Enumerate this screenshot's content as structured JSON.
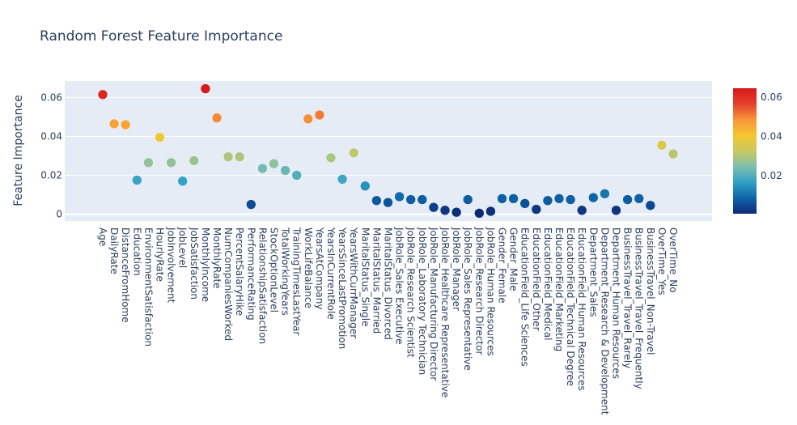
{
  "chart_data": {
    "type": "scatter",
    "title": "Random Forest Feature Importance",
    "xlabel": "",
    "ylabel": "Feature Importance",
    "ylim": [
      -0.0035,
      0.0685
    ],
    "yticks": [
      0,
      0.02,
      0.04,
      0.06
    ],
    "ytick_labels": [
      "0",
      "0.02",
      "0.04",
      "0.06"
    ],
    "colorbar": {
      "range": [
        0.0005,
        0.0645
      ],
      "ticks": [
        0.02,
        0.04,
        0.06
      ],
      "tick_labels": [
        "0.02",
        "0.04",
        "0.06"
      ],
      "colorscale": [
        "#0d2a78",
        "#0e65a8",
        "#31a0c6",
        "#7fbfae",
        "#c8c960",
        "#f5c730",
        "#f8953a",
        "#e4402b",
        "#d7191c"
      ]
    },
    "categories": [
      "Age",
      "DailyRate",
      "DistanceFromHome",
      "Education",
      "EnvironmentSatisfaction",
      "HourlyRate",
      "JobInvolvement",
      "JobLevel",
      "JobSatisfaction",
      "MonthlyIncome",
      "MonthlyRate",
      "NumCompaniesWorked",
      "PercentSalaryHike",
      "PerformanceRating",
      "RelationshipSatisfaction",
      "StockOptionLevel",
      "TotalWorkingYears",
      "TrainingTimesLastYear",
      "WorkLifeBalance",
      "YearsAtCompany",
      "YearsInCurrentRole",
      "YearsSinceLastPromotion",
      "YearsWithCurrManager",
      "MaritalStatus_Single",
      "MaritalStatus_Married",
      "MaritalStatus_Divorced",
      "JobRole_Sales Executive",
      "JobRole_Research Scientist",
      "JobRole_Laboratory Technician",
      "JobRole_Manufacturing Director",
      "JobRole_Healthcare Representative",
      "JobRole_Manager",
      "JobRole_Sales Representative",
      "JobRole_Research Director",
      "JobRole_Human Resources",
      "Gender_Female",
      "Gender_Male",
      "EducationField_Life Sciences",
      "EducationField_Other",
      "EducationField_Medical",
      "EducationField_Marketing",
      "EducationField_Technical Degree",
      "EducationField_Human Resources",
      "Department_Sales",
      "Department_Research & Development",
      "Department_Human Resources",
      "BusinessTravel_Travel_Rarely",
      "BusinessTravel_Travel_Frequently",
      "BusinessTravel_Non-Travel",
      "OverTime_Yes",
      "OverTime_No"
    ],
    "values": [
      0.0615,
      0.0465,
      0.046,
      0.0175,
      0.0265,
      0.0395,
      0.0265,
      0.017,
      0.0275,
      0.0645,
      0.0495,
      0.0295,
      0.0295,
      0.005,
      0.0235,
      0.026,
      0.0225,
      0.02,
      0.049,
      0.051,
      0.029,
      0.018,
      0.0315,
      0.0145,
      0.007,
      0.006,
      0.009,
      0.0075,
      0.0075,
      0.0035,
      0.002,
      0.001,
      0.0075,
      0.0005,
      0.0015,
      0.008,
      0.008,
      0.0055,
      0.0025,
      0.007,
      0.008,
      0.0075,
      0.002,
      0.0085,
      0.0105,
      0.002,
      0.0075,
      0.008,
      0.0045,
      0.0355,
      0.031
    ]
  }
}
